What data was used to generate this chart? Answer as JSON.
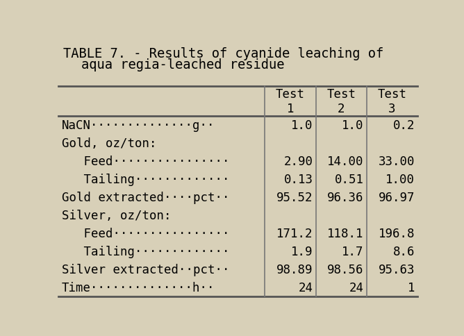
{
  "title_line1": "TABLE 7. - Results of cyanide leaching of",
  "title_line2": "aqua regia-leached residue",
  "background_color": "#d8d0b8",
  "col_headers": [
    [
      "Test",
      "1"
    ],
    [
      "Test",
      "2"
    ],
    [
      "Test",
      "3"
    ]
  ],
  "rows": [
    {
      "label": "NaCN··············g··",
      "values": [
        "1.0",
        "1.0",
        "0.2"
      ]
    },
    {
      "label": "Gold, oz/ton:",
      "values": [
        "",
        "",
        ""
      ]
    },
    {
      "label": "   Feed················",
      "values": [
        "2.90",
        "14.00",
        "33.00"
      ]
    },
    {
      "label": "   Tailing·············",
      "values": [
        "0.13",
        "0.51",
        "1.00"
      ]
    },
    {
      "label": "Gold extracted····pct··",
      "values": [
        "95.52",
        "96.36",
        "96.97"
      ]
    },
    {
      "label": "Silver, oz/ton:",
      "values": [
        "",
        "",
        ""
      ]
    },
    {
      "label": "   Feed················",
      "values": [
        "171.2",
        "118.1",
        "196.8"
      ]
    },
    {
      "label": "   Tailing·············",
      "values": [
        "1.9",
        "1.7",
        "8.6"
      ]
    },
    {
      "label": "Silver extracted··pct··",
      "values": [
        "98.89",
        "98.56",
        "95.63"
      ]
    },
    {
      "label": "Time··············h··",
      "values": [
        "24",
        "24",
        "1"
      ]
    }
  ],
  "font_size": 12.5,
  "title_font_size": 13.5,
  "header_font_size": 12.5,
  "text_color": "#000000",
  "line_color": "#555555",
  "col_divider_color": "#777777"
}
